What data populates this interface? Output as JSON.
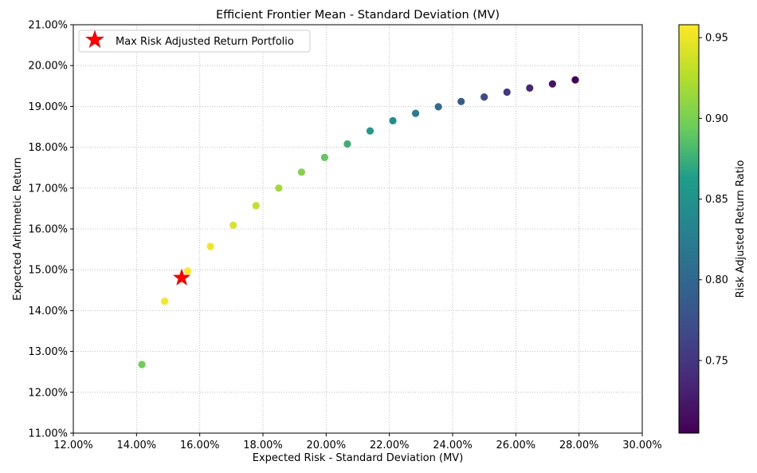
{
  "chart_data": {
    "type": "scatter",
    "title": "Efficient Frontier Mean - Standard Deviation (MV)",
    "xlabel": "Expected Risk - Standard Deviation (MV)",
    "ylabel": "Expected Arithmetic Return",
    "xlim": [
      0.12,
      0.3
    ],
    "ylim": [
      0.11,
      0.21
    ],
    "x_ticks": [
      0.12,
      0.14,
      0.16,
      0.18,
      0.2,
      0.22,
      0.24,
      0.26,
      0.28,
      0.3
    ],
    "x_tick_labels": [
      "12.00%",
      "14.00%",
      "16.00%",
      "18.00%",
      "20.00%",
      "22.00%",
      "24.00%",
      "26.00%",
      "28.00%",
      "30.00%"
    ],
    "y_ticks": [
      0.11,
      0.12,
      0.13,
      0.14,
      0.15,
      0.16,
      0.17,
      0.18,
      0.19,
      0.2,
      0.21
    ],
    "y_tick_labels": [
      "11.00%",
      "12.00%",
      "13.00%",
      "14.00%",
      "15.00%",
      "16.00%",
      "17.00%",
      "18.00%",
      "19.00%",
      "20.00%",
      "21.00%"
    ],
    "grid": true,
    "grid_style": "dotted",
    "colormap": "viridis",
    "colorbar": {
      "label": "Risk Adjusted Return Ratio",
      "range": [
        0.705,
        0.958
      ],
      "ticks": [
        0.75,
        0.8,
        0.85,
        0.9,
        0.95
      ],
      "tick_labels": [
        "0.75",
        "0.80",
        "0.85",
        "0.90",
        "0.95"
      ]
    },
    "points": [
      {
        "x": 0.1417,
        "y": 0.1268,
        "ratio": 0.895
      },
      {
        "x": 0.1489,
        "y": 0.1423,
        "ratio": 0.955
      },
      {
        "x": 0.1562,
        "y": 0.1497,
        "ratio": 0.958
      },
      {
        "x": 0.1634,
        "y": 0.1557,
        "ratio": 0.953
      },
      {
        "x": 0.1706,
        "y": 0.1609,
        "ratio": 0.943
      },
      {
        "x": 0.1778,
        "y": 0.1657,
        "ratio": 0.932
      },
      {
        "x": 0.185,
        "y": 0.17,
        "ratio": 0.919
      },
      {
        "x": 0.1922,
        "y": 0.1739,
        "ratio": 0.905
      },
      {
        "x": 0.1995,
        "y": 0.1775,
        "ratio": 0.89
      },
      {
        "x": 0.2067,
        "y": 0.1808,
        "ratio": 0.875
      },
      {
        "x": 0.2139,
        "y": 0.184,
        "ratio": 0.86
      },
      {
        "x": 0.2211,
        "y": 0.1865,
        "ratio": 0.843
      },
      {
        "x": 0.2283,
        "y": 0.1883,
        "ratio": 0.825
      },
      {
        "x": 0.2355,
        "y": 0.1899,
        "ratio": 0.806
      },
      {
        "x": 0.2427,
        "y": 0.1912,
        "ratio": 0.788
      },
      {
        "x": 0.25,
        "y": 0.1923,
        "ratio": 0.769
      },
      {
        "x": 0.2572,
        "y": 0.1935,
        "ratio": 0.752
      },
      {
        "x": 0.2644,
        "y": 0.1945,
        "ratio": 0.736
      },
      {
        "x": 0.2716,
        "y": 0.1955,
        "ratio": 0.721
      },
      {
        "x": 0.2788,
        "y": 0.1965,
        "ratio": 0.706
      }
    ],
    "highlight": {
      "label": "Max Risk Adjusted Return Portfolio",
      "x": 0.1543,
      "y": 0.148,
      "marker": "star",
      "color": "#ff0000"
    },
    "legend_placement": "top-left"
  }
}
